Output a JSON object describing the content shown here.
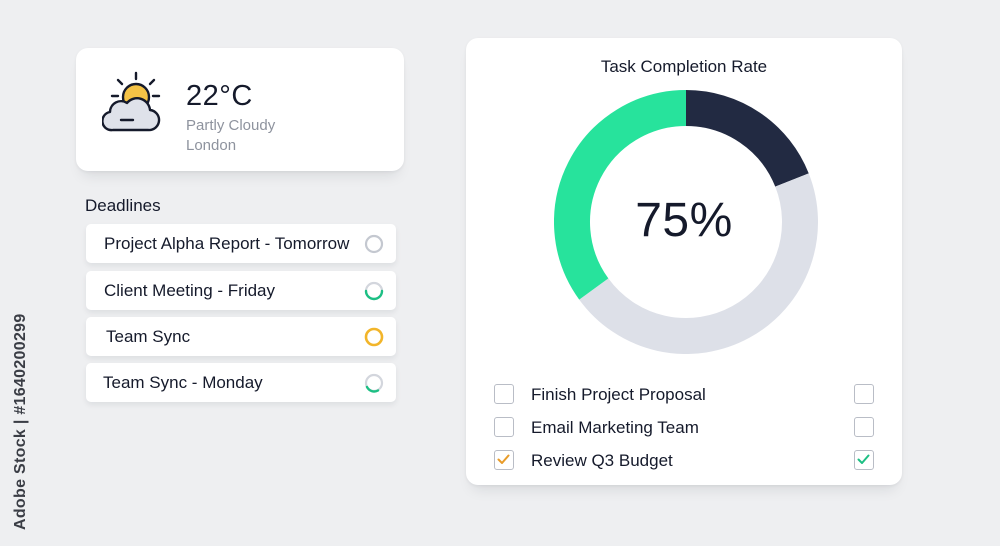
{
  "weather": {
    "temperature": "22°C",
    "condition": "Partly Cloudy",
    "city": "London",
    "icon": "partly-cloudy-icon"
  },
  "deadlines": {
    "title": "Deadlines",
    "items": [
      {
        "label": "Project Alpha Report - Tomorrow",
        "status_icon": "empty-ring-icon",
        "progress": 0
      },
      {
        "label": "Client Meeting - Friday",
        "status_icon": "progress-ring-icon",
        "progress": 0.35
      },
      {
        "label": "Team Sync",
        "status_icon": "full-ring-icon",
        "progress": 1.0
      },
      {
        "label": "Team Sync - Monday",
        "status_icon": "progress-ring-icon",
        "progress": 0.3
      }
    ]
  },
  "task_card": {
    "title": "Task Completion Rate",
    "value_label": "75%",
    "tasks": [
      {
        "label": "Finish Project Proposal",
        "left_checked": false,
        "right_checked": false
      },
      {
        "label": "Email Marketing Team",
        "left_checked": false,
        "right_checked": false
      },
      {
        "label": "Review Q3 Budget",
        "left_checked": true,
        "right_checked": true
      }
    ]
  },
  "chart_data": {
    "type": "pie",
    "title": "Task Completion Rate",
    "center_label": "75%",
    "slices": [
      {
        "name": "",
        "value": 19,
        "color": "#222a42"
      },
      {
        "name": "",
        "value": 46,
        "color": "#dde0e8"
      },
      {
        "name": "",
        "value": 35,
        "color": "#27e39c"
      }
    ]
  },
  "colors": {
    "accent_green": "#27e39c",
    "navy": "#222a42",
    "ring_gray": "#dde0e8",
    "amber": "#f2b52a",
    "check_green": "#1dbf84",
    "check_amber": "#e89c2a"
  },
  "watermark": {
    "text": "Adobe Stock | #1640200299"
  }
}
